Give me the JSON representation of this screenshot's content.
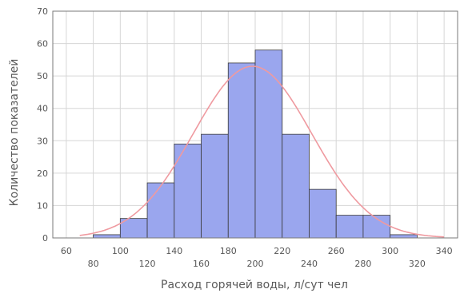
{
  "chart_data": {
    "type": "bar",
    "xlabel": "Расход горячей воды, л/сут  чел",
    "ylabel": "Количество показателей",
    "bins": [
      {
        "x0": 80,
        "x1": 100,
        "value": 1
      },
      {
        "x0": 100,
        "x1": 120,
        "value": 6
      },
      {
        "x0": 120,
        "x1": 140,
        "value": 17
      },
      {
        "x0": 140,
        "x1": 160,
        "value": 29
      },
      {
        "x0": 160,
        "x1": 180,
        "value": 32
      },
      {
        "x0": 180,
        "x1": 200,
        "value": 54
      },
      {
        "x0": 200,
        "x1": 220,
        "value": 58
      },
      {
        "x0": 220,
        "x1": 240,
        "value": 32
      },
      {
        "x0": 240,
        "x1": 260,
        "value": 15
      },
      {
        "x0": 260,
        "x1": 280,
        "value": 7
      },
      {
        "x0": 280,
        "x1": 300,
        "value": 7
      },
      {
        "x0": 300,
        "x1": 320,
        "value": 1
      }
    ],
    "curve": {
      "type": "normal",
      "mean": 198,
      "std": 44,
      "peak": 53
    },
    "xlim": [
      50,
      350
    ],
    "ylim": [
      0,
      70
    ],
    "xticks_upper": [
      60,
      100,
      140,
      180,
      220,
      260,
      300,
      340
    ],
    "xticks_lower": [
      80,
      120,
      160,
      200,
      240,
      280,
      320
    ],
    "yticks": [
      0,
      10,
      20,
      30,
      40,
      50,
      60,
      70
    ],
    "grid": true,
    "colors": {
      "bar_fill": "#9aa6ee",
      "bar_stroke": "#3a3a3a",
      "curve": "#ef9aa0",
      "grid": "#d6d6d6",
      "frame": "#7a7a7a"
    }
  }
}
